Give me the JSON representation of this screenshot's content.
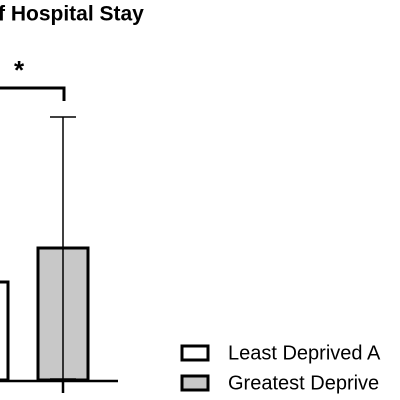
{
  "chart_data": {
    "type": "bar",
    "title": "f Hospital Stay",
    "annotation": "*",
    "categories": [
      null
    ],
    "series": [
      {
        "name": "Least Deprived A",
        "color": "#ffffff",
        "values": [
          98
        ]
      },
      {
        "name": "Greatest Deprive",
        "color": "#c8c8c8",
        "values": [
          132
        ],
        "errors": [
          131
        ]
      }
    ],
    "ylim": [
      0,
      300
    ]
  }
}
